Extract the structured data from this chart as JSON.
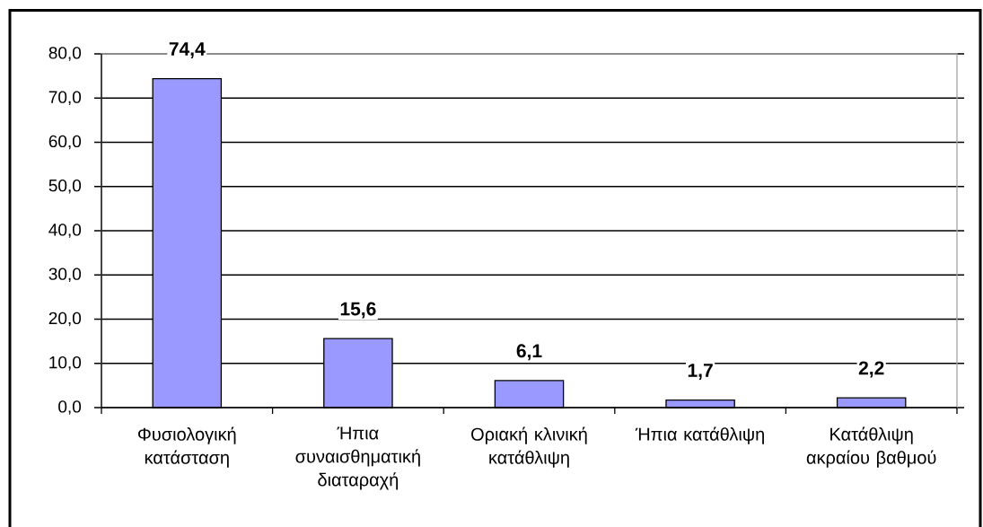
{
  "chart_data": {
    "type": "bar",
    "categories": [
      "Φυσιολογική κατάσταση",
      "Ήπια συναισθηματική διαταραχή",
      "Οριακή κλινική κατάθλιψη",
      "Ήπια κατάθλιψη",
      "Κατάθλιψη ακραίου βαθμού"
    ],
    "values": [
      74.4,
      15.6,
      6.1,
      1.7,
      2.2
    ],
    "value_labels": [
      "74,4",
      "15,6",
      "6,1",
      "1,7",
      "2,2"
    ],
    "color": "#9999ff",
    "ylim": [
      0,
      80
    ],
    "yticks": [
      {
        "value": 0,
        "label": "0,0"
      },
      {
        "value": 10,
        "label": "10,0"
      },
      {
        "value": 20,
        "label": "20,0"
      },
      {
        "value": 30,
        "label": "30,0"
      },
      {
        "value": 40,
        "label": "40,0"
      },
      {
        "value": 50,
        "label": "50,0"
      },
      {
        "value": 60,
        "label": "60,0"
      },
      {
        "value": 70,
        "label": "70,0"
      },
      {
        "value": 80,
        "label": "80,0"
      }
    ],
    "grid": "y"
  }
}
